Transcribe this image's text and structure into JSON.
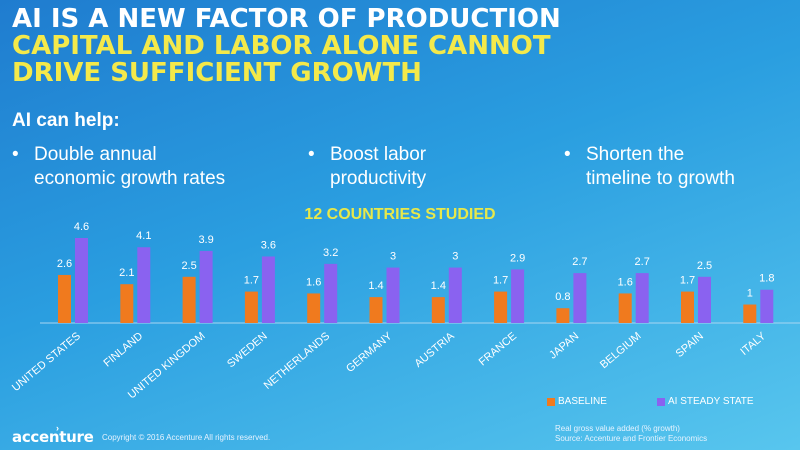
{
  "headline": {
    "line1": "AI IS A NEW FACTOR OF PRODUCTION",
    "line2": "CAPITAL AND LABOR ALONE CANNOT",
    "line3": "DRIVE SUFFICIENT GROWTH"
  },
  "subhead": "AI can help:",
  "bullets": [
    {
      "line1": "Double annual",
      "line2": "economic growth rates"
    },
    {
      "line1": "Boost labor",
      "line2": "productivity"
    },
    {
      "line1": "Shorten the",
      "line2": "timeline to growth"
    }
  ],
  "bullet_marker": "•",
  "chart_data": {
    "type": "bar",
    "title": "12 COUNTRIES STUDIED",
    "categories": [
      "UNITED STATES",
      "FINLAND",
      "UNITED KINGDOM",
      "SWEDEN",
      "NETHERLANDS",
      "GERMANY",
      "AUSTRIA",
      "FRANCE",
      "JAPAN",
      "BELGIUM",
      "SPAIN",
      "ITALY"
    ],
    "series": [
      {
        "name": "BASELINE",
        "color": "#f07a1e",
        "values": [
          2.6,
          2.1,
          2.5,
          1.7,
          1.6,
          1.4,
          1.4,
          1.7,
          0.8,
          1.6,
          1.7,
          1
        ]
      },
      {
        "name": "AI STEADY STATE",
        "color": "#8a62f0",
        "values": [
          4.6,
          4.1,
          3.9,
          3.6,
          3.2,
          3,
          3,
          2.9,
          2.7,
          2.7,
          2.5,
          1.8
        ]
      }
    ],
    "ylim": [
      0,
      5
    ],
    "grid": false,
    "legend_position": "bottom-right",
    "data_labels": true
  },
  "footer": {
    "logo": "accenture",
    "copyright": "Copyright © 2016 Accenture All rights reserved.",
    "note": "Real gross value added (% growth)",
    "source": "Source: Accenture and Frontier Economics"
  }
}
